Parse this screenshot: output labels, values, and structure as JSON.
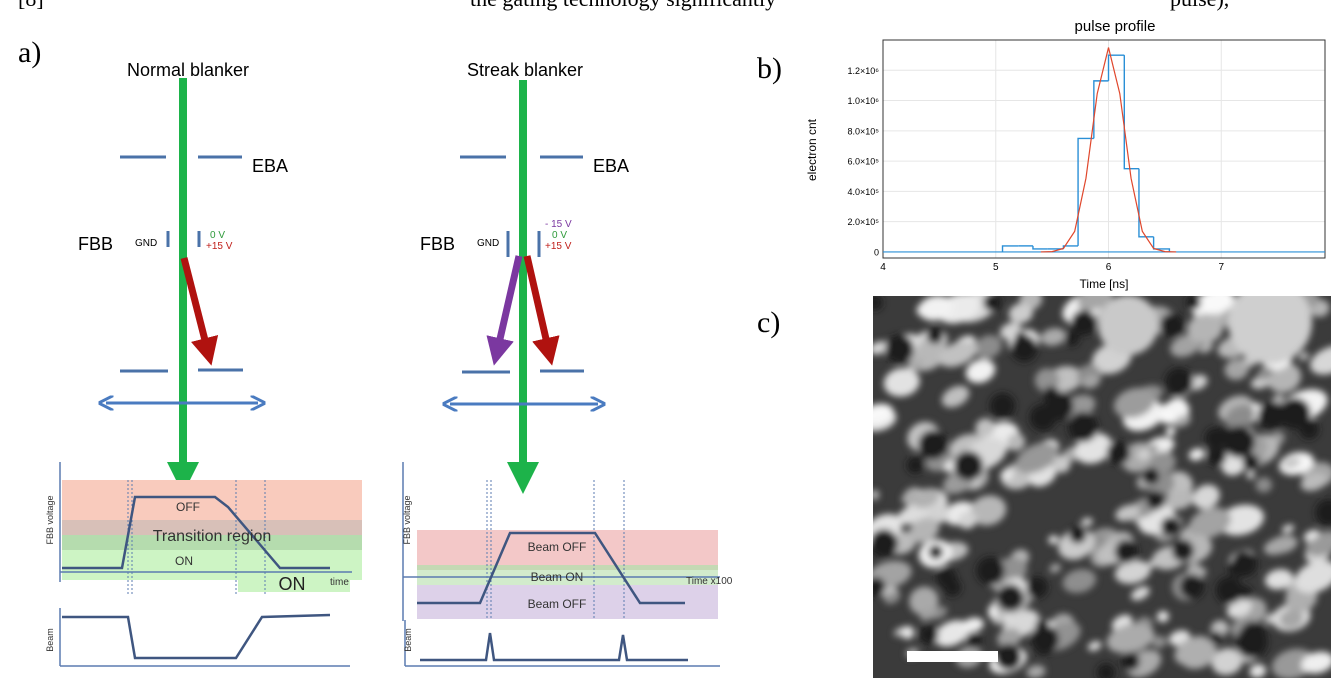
{
  "header": {
    "text_left": "[8]",
    "text_middle": "the gating technology significantly",
    "text_right": "pulse),"
  },
  "panel_labels": {
    "a": "a)",
    "b": "b)",
    "c": "c)"
  },
  "normal_blanker": {
    "title": "Normal blanker",
    "eba": "EBA",
    "fbb": "FBB",
    "gnd": "GND",
    "voltages": [
      "0 V",
      "+15 V"
    ],
    "regions": [
      "OFF",
      "Transition region",
      "ON"
    ],
    "on_label": "ON",
    "time_axis": "time",
    "voltage_axis": "FBB voltage",
    "beam_axis": "Beam"
  },
  "streak_blanker": {
    "title": "Streak blanker",
    "eba": "EBA",
    "fbb": "FBB",
    "gnd": "GND",
    "voltages": [
      "- 15 V",
      "0 V",
      "+15 V"
    ],
    "regions": [
      "Beam OFF",
      "Beam ON",
      "Beam OFF"
    ],
    "time_axis": "Time x100",
    "voltage_axis": "FBB voltage",
    "beam_axis": "Beam"
  },
  "chart_data": {
    "type": "histogram",
    "title": "pulse profile",
    "x_label": "Time [ns]",
    "y_label": "electron cnt",
    "bins": [
      5.06,
      5.2,
      5.33,
      5.46,
      5.6,
      5.73,
      5.87,
      6.0,
      6.14,
      6.27,
      6.4,
      6.54
    ],
    "values": [
      40000,
      40000,
      20000,
      20000,
      40000,
      750000,
      1130000,
      1300000,
      550000,
      100000,
      20000
    ],
    "color": "#2a8fd6",
    "overlay": {
      "type": "line",
      "color": "#e0472c",
      "x": [
        5.4,
        5.5,
        5.6,
        5.7,
        5.8,
        5.9,
        6.0,
        6.1,
        6.2,
        6.3,
        6.4,
        6.5,
        6.6
      ],
      "values": [
        140,
        2300,
        22800,
        136000,
        487000,
        1046000,
        1350000,
        1046000,
        487000,
        136000,
        22800,
        2300,
        140
      ]
    },
    "xlim": [
      4,
      7.92
    ],
    "xticks": [
      4,
      5,
      6,
      7
    ],
    "ylim": [
      -40000,
      1400000
    ],
    "yticks": [
      0,
      {
        "value": 200000,
        "label": "2.0×10⁵"
      },
      {
        "value": 400000,
        "label": "4.0×10⁵"
      },
      {
        "value": 600000,
        "label": "6.0×10⁵"
      },
      {
        "value": 800000,
        "label": "8.0×10⁵"
      },
      {
        "value": 1000000,
        "label": "1.0×10⁶"
      },
      {
        "value": 1200000,
        "label": "1.2×10⁶"
      }
    ],
    "grid": true
  }
}
